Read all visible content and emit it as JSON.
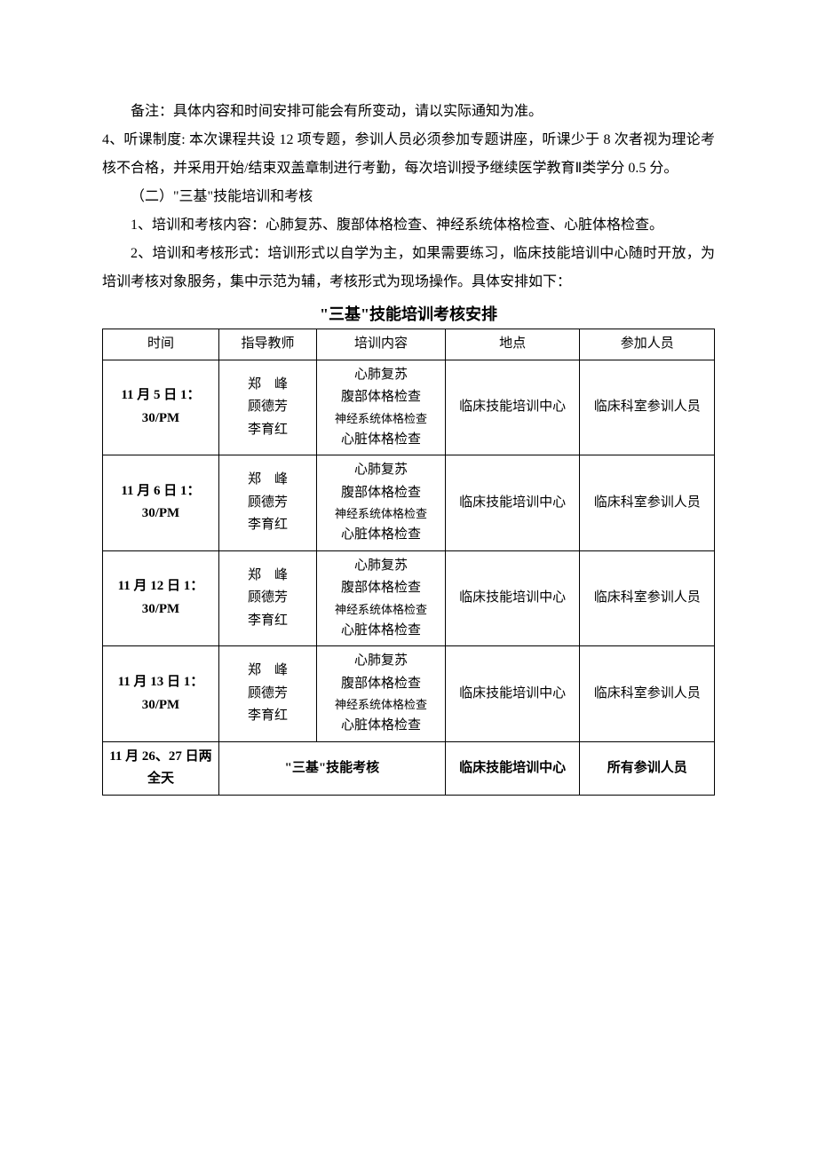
{
  "paragraphs": {
    "p1": "备注：具体内容和时间安排可能会有所变动，请以实际通知为准。",
    "p2": "4、听课制度: 本次课程共设 12 项专题，参训人员必须参加专题讲座，听课少于 8 次者视为理论考核不合格，并采用开始/结束双盖章制进行考勤，每次培训授予继续医学教育Ⅱ类学分 0.5 分。",
    "p3": "（二）\"三基\"技能培训和考核",
    "p4": "1、培训和考核内容：心肺复苏、腹部体格检查、神经系统体格检查、心脏体格检查。",
    "p5": "2、培训和考核形式：培训形式以自学为主，如果需要练习，临床技能培训中心随时开放，为培训考核对象服务，集中示范为辅，考核形式为现场操作。具体安排如下："
  },
  "table_title": "\"三基\"技能培训考核安排",
  "headers": {
    "time": "时间",
    "teacher": "指导教师",
    "content": "培训内容",
    "location": "地点",
    "person": "参加人员"
  },
  "training_content": {
    "c1": "心肺复苏",
    "c2": "腹部体格检查",
    "c3": "神经系统体格检查",
    "c4": "心脏体格检查"
  },
  "teachers": {
    "t1": "郑　峰",
    "t2": "顾德芳",
    "t3": "李育红"
  },
  "rows": [
    {
      "time_l1": "11 月 5 日",
      "time_l2": "1：30/PM",
      "loc": "临床技能培训中心",
      "person": "临床科室参训人员"
    },
    {
      "time_l1": "11 月 6 日",
      "time_l2": "1：30/PM",
      "loc": "临床技能培训中心",
      "person": "临床科室参训人员"
    },
    {
      "time_l1": "11 月 12 日",
      "time_l2": "1：30/PM",
      "loc": "临床技能培训中心",
      "person": "临床科室参训人员"
    },
    {
      "time_l1": "11 月 13 日",
      "time_l2": "1：30/PM",
      "loc": "临床技能培训中心",
      "person": "临床科室参训人员"
    }
  ],
  "exam_row": {
    "time_l1": "11 月 26、27",
    "time_l2": "日两全天",
    "label": "\"三基\"技能考核",
    "loc": "临床技能培训中心",
    "person": "所有参训人员"
  }
}
